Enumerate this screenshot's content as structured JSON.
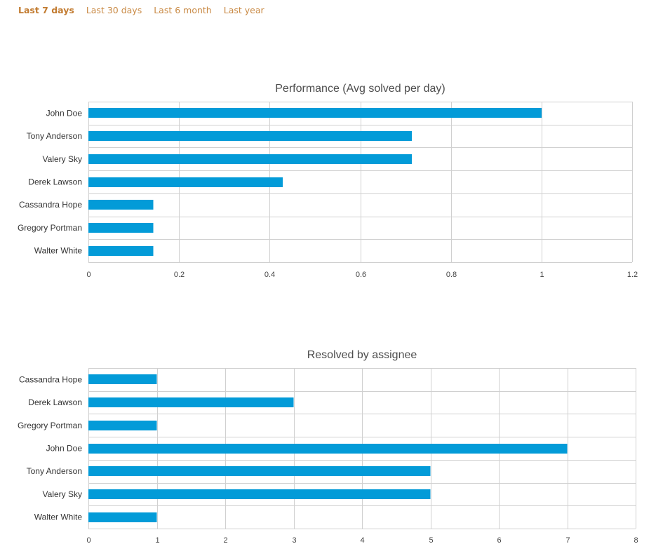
{
  "colors": {
    "bar": "#039bd8",
    "active_tab": "#c27b30",
    "tab": "#c98a45"
  },
  "tabs": [
    {
      "label": "Last 7 days",
      "active": true
    },
    {
      "label": "Last 30 days",
      "active": false
    },
    {
      "label": "Last 6 month",
      "active": false
    },
    {
      "label": "Last year",
      "active": false
    }
  ],
  "chart_data": [
    {
      "type": "bar",
      "orientation": "horizontal",
      "title": "Performance (Avg solved per day)",
      "categories": [
        "John Doe",
        "Tony Anderson",
        "Valery Sky",
        "Derek Lawson",
        "Cassandra Hope",
        "Gregory Portman",
        "Walter White"
      ],
      "values": [
        1,
        0.714,
        0.714,
        0.429,
        0.143,
        0.143,
        0.143
      ],
      "xlim": [
        0,
        1.2
      ],
      "ticks": [
        "0",
        "0.2",
        "0.4",
        "0.6",
        "0.8",
        "1",
        "1.2"
      ],
      "grid": true
    },
    {
      "type": "bar",
      "orientation": "horizontal",
      "title": "Resolved by assignee",
      "categories": [
        "Cassandra Hope",
        "Derek Lawson",
        "Gregory Portman",
        "John Doe",
        "Tony Anderson",
        "Valery Sky",
        "Walter White"
      ],
      "values": [
        1,
        3,
        1,
        7,
        5,
        5,
        1
      ],
      "xlim": [
        0,
        8
      ],
      "ticks": [
        "0",
        "1",
        "2",
        "3",
        "4",
        "5",
        "6",
        "7",
        "8"
      ],
      "grid": true
    }
  ]
}
